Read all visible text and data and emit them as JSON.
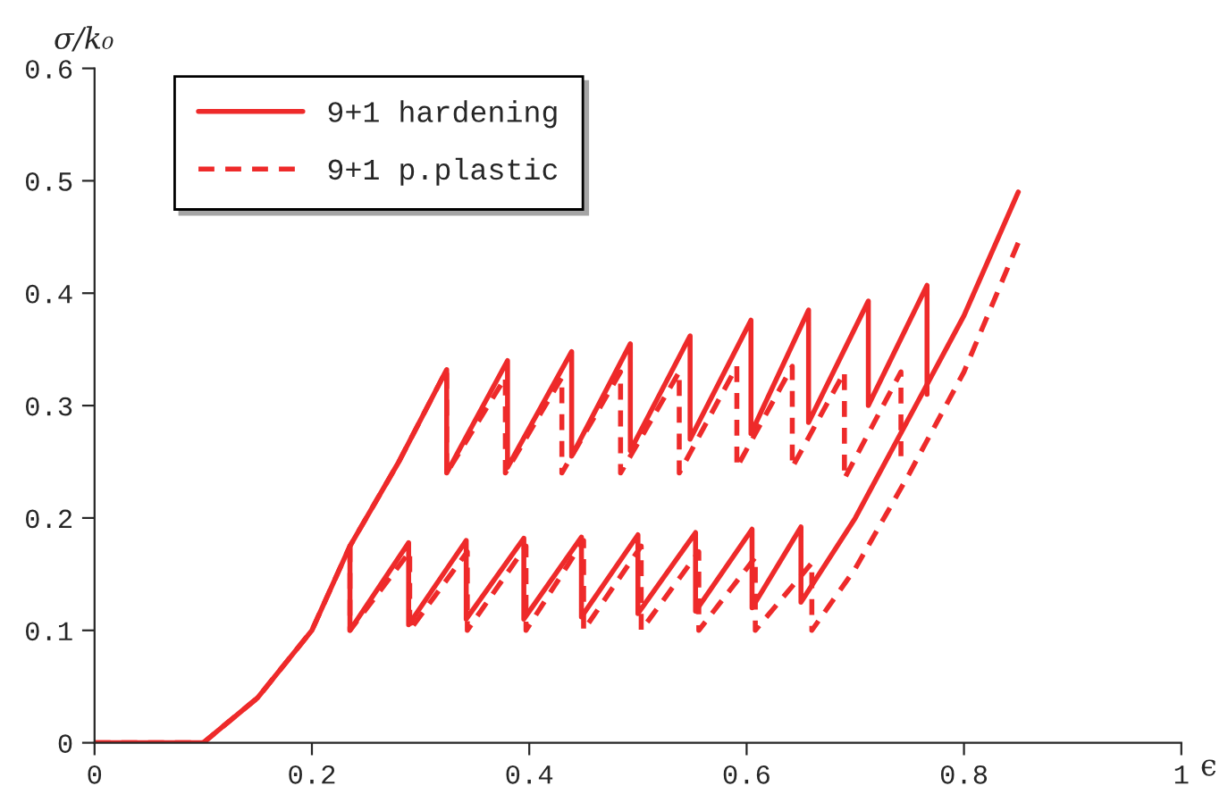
{
  "chart_data": {
    "type": "line",
    "xlabel": "ϵ",
    "ylabel": "σ/k₀",
    "xlim": [
      0,
      1
    ],
    "ylim": [
      0,
      0.6
    ],
    "xticks": [
      0,
      0.2,
      0.4,
      0.6,
      0.8,
      1
    ],
    "yticks": [
      0,
      0.1,
      0.2,
      0.3,
      0.4,
      0.5,
      0.6
    ],
    "grid": false,
    "legend": "top left",
    "marker": "none",
    "series": [
      {
        "name": "9+1 hardening",
        "color": "#ee2a2a",
        "line_style": "solid",
        "x": [
          0,
          0.1,
          0.15,
          0.2,
          0.235,
          0.28,
          0.324,
          0.324,
          0.38,
          0.38,
          0.439,
          0.439,
          0.493,
          0.493,
          0.548,
          0.548,
          0.604,
          0.604,
          0.657,
          0.657,
          0.712,
          0.712,
          0.766,
          0.766
        ],
        "values": [
          0,
          0,
          0.04,
          0.1,
          0.175,
          0.25,
          0.332,
          0.24,
          0.34,
          0.245,
          0.348,
          0.255,
          0.355,
          0.26,
          0.362,
          0.27,
          0.376,
          0.275,
          0.385,
          0.285,
          0.393,
          0.3,
          0.407,
          0.31
        ]
      },
      {
        "color": "#ee2a2a",
        "line_style": "solid",
        "x": [
          0.235,
          0.235,
          0.289,
          0.289,
          0.342,
          0.342,
          0.395,
          0.395,
          0.448,
          0.448,
          0.5,
          0.5,
          0.553,
          0.553,
          0.605,
          0.605,
          0.65,
          0.65,
          0.7,
          0.75,
          0.8,
          0.85
        ],
        "values": [
          0.175,
          0.1,
          0.178,
          0.105,
          0.18,
          0.11,
          0.182,
          0.11,
          0.183,
          0.112,
          0.185,
          0.115,
          0.187,
          0.117,
          0.19,
          0.12,
          0.192,
          0.125,
          0.2,
          0.29,
          0.38,
          0.49
        ]
      },
      {
        "name": "9+1 p.plastic",
        "color": "#ee2a2a",
        "line_style": "dashed",
        "x": [
          0,
          0.1,
          0.15,
          0.2,
          0.235,
          0.28,
          0.324,
          0.324,
          0.378,
          0.378,
          0.43,
          0.43,
          0.484,
          0.484,
          0.538,
          0.538,
          0.591,
          0.591,
          0.642,
          0.642,
          0.69,
          0.69,
          0.742,
          0.742
        ],
        "values": [
          0,
          0,
          0.04,
          0.1,
          0.175,
          0.25,
          0.332,
          0.24,
          0.325,
          0.24,
          0.325,
          0.24,
          0.33,
          0.24,
          0.33,
          0.24,
          0.335,
          0.245,
          0.335,
          0.245,
          0.33,
          0.235,
          0.33,
          0.255
        ]
      },
      {
        "color": "#ee2a2a",
        "line_style": "dashed",
        "x": [
          0.235,
          0.235,
          0.29,
          0.29,
          0.343,
          0.343,
          0.397,
          0.397,
          0.45,
          0.45,
          0.503,
          0.503,
          0.556,
          0.556,
          0.608,
          0.608,
          0.66,
          0.66,
          0.7,
          0.75,
          0.8,
          0.85
        ],
        "values": [
          0.175,
          0.1,
          0.17,
          0.1,
          0.17,
          0.1,
          0.175,
          0.1,
          0.18,
          0.1,
          0.175,
          0.1,
          0.17,
          0.1,
          0.165,
          0.1,
          0.16,
          0.1,
          0.155,
          0.24,
          0.33,
          0.445
        ]
      }
    ]
  }
}
